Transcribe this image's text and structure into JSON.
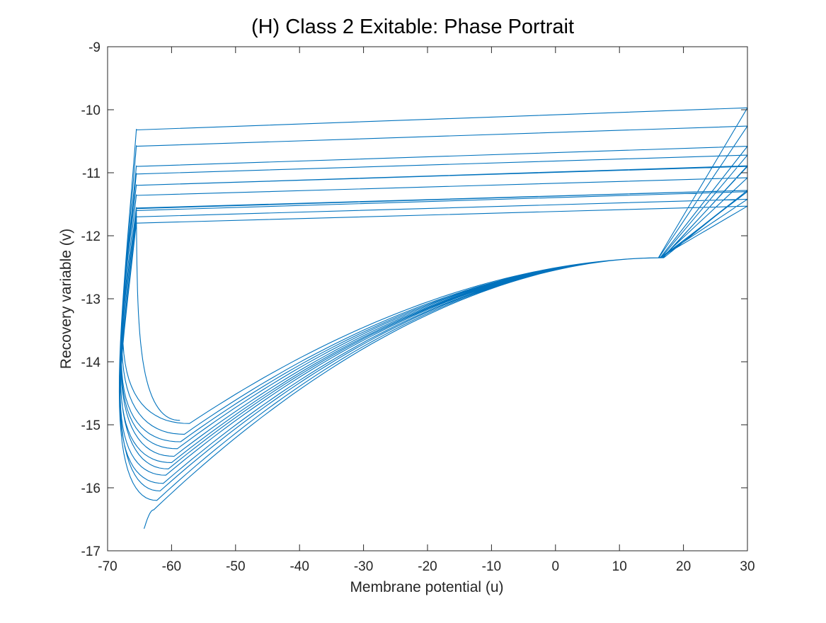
{
  "colors": {
    "line": "#0072BD",
    "axes": "#262626",
    "background": "#ffffff"
  },
  "chart_data": {
    "type": "line",
    "title": "(H) Class 2 Exitable: Phase Portrait",
    "xlabel": "Membrane potential (u)",
    "ylabel": "Recovery variable (v)",
    "xlim": [
      -70,
      30
    ],
    "ylim": [
      -17,
      -9
    ],
    "xticks": [
      -70,
      -60,
      -50,
      -40,
      -30,
      -20,
      -10,
      0,
      10,
      20,
      30
    ],
    "yticks": [
      -17,
      -16,
      -15,
      -14,
      -13,
      -12,
      -11,
      -10,
      -9
    ],
    "xtick_labels": [
      "-70",
      "-60",
      "-50",
      "-40",
      "-30",
      "-20",
      "-10",
      "0",
      "10",
      "20",
      "30"
    ],
    "ytick_labels": [
      "-17",
      "-16",
      "-15",
      "-14",
      "-13",
      "-12",
      "-11",
      "-10",
      "-9"
    ],
    "grid": false,
    "legend": "none",
    "trajectory": {
      "start": [
        -64.3,
        -16.65
      ],
      "end": [
        -58.7,
        -14.93
      ],
      "reset_u": -65.5,
      "peak_u": 30,
      "reset_jump": 0.01,
      "cycle_minima": [
        -16.35,
        -16.2,
        -16.05,
        -15.93,
        -15.8,
        -15.7,
        -15.6,
        -15.5,
        -15.38,
        -15.27,
        -15.15,
        -14.98
      ],
      "reset_v": [
        -10.32,
        -10.58,
        -11.8,
        -11.7,
        -10.9,
        -11.6,
        -11.02,
        -11.36,
        -11.56,
        -11.2,
        -11.2,
        -11.57
      ],
      "peak_v": [
        -9.97,
        -10.26,
        -11.53,
        -11.42,
        -10.58,
        -11.3,
        -10.72,
        -11.08,
        -11.28,
        -10.9,
        -10.89,
        -11.28
      ],
      "min_u": [
        -62.8,
        -62.3,
        -61.8,
        -61.3,
        -60.9,
        -60.5,
        -60.0,
        -59.6,
        -59.1,
        -58.6,
        -58.0,
        -57.2
      ]
    }
  }
}
